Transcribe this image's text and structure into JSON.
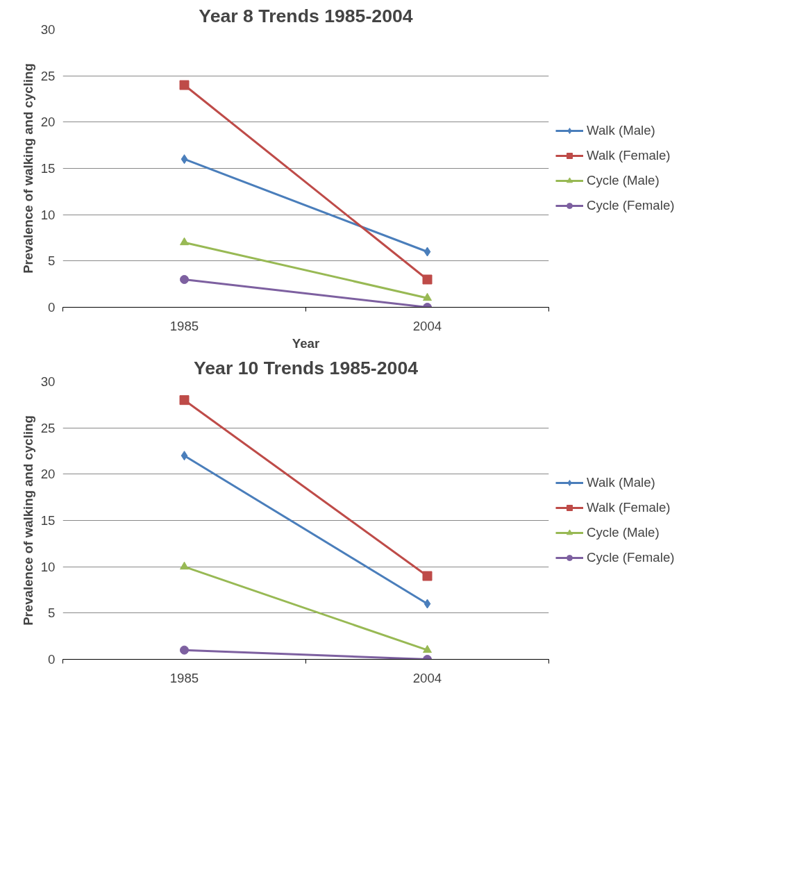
{
  "chart_data": [
    {
      "type": "line",
      "title": "Year 8 Trends 1985-2004",
      "xlabel": "Year",
      "ylabel": "Prevalence of walking and cycling",
      "categories": [
        "1985",
        "2004"
      ],
      "ylim": [
        0,
        30
      ],
      "yticks": [
        0,
        5,
        10,
        15,
        20,
        25,
        30
      ],
      "grid": "y",
      "legend": "right",
      "series": [
        {
          "name": "Walk (Male)",
          "color": "#4a7ebb",
          "marker": "diamond",
          "values": [
            16,
            6
          ]
        },
        {
          "name": "Walk (Female)",
          "color": "#be4b48",
          "marker": "square",
          "values": [
            24,
            3
          ]
        },
        {
          "name": "Cycle (Male)",
          "color": "#98b954",
          "marker": "triangle",
          "values": [
            7,
            1
          ]
        },
        {
          "name": "Cycle (Female)",
          "color": "#7d60a0",
          "marker": "circle",
          "values": [
            3,
            0
          ]
        }
      ]
    },
    {
      "type": "line",
      "title": "Year 10 Trends 1985-2004",
      "ylabel": "Prevalence of walking and cycling",
      "categories": [
        "1985",
        "2004"
      ],
      "ylim": [
        0,
        30
      ],
      "yticks": [
        0,
        5,
        10,
        15,
        20,
        25,
        30
      ],
      "grid": "y",
      "legend": "right",
      "series": [
        {
          "name": "Walk (Male)",
          "color": "#4a7ebb",
          "marker": "diamond",
          "values": [
            22,
            6
          ]
        },
        {
          "name": "Walk (Female)",
          "color": "#be4b48",
          "marker": "square",
          "values": [
            28,
            9
          ]
        },
        {
          "name": "Cycle (Male)",
          "color": "#98b954",
          "marker": "triangle",
          "values": [
            10,
            1
          ]
        },
        {
          "name": "Cycle (Female)",
          "color": "#7d60a0",
          "marker": "circle",
          "values": [
            1,
            0
          ]
        }
      ]
    }
  ]
}
